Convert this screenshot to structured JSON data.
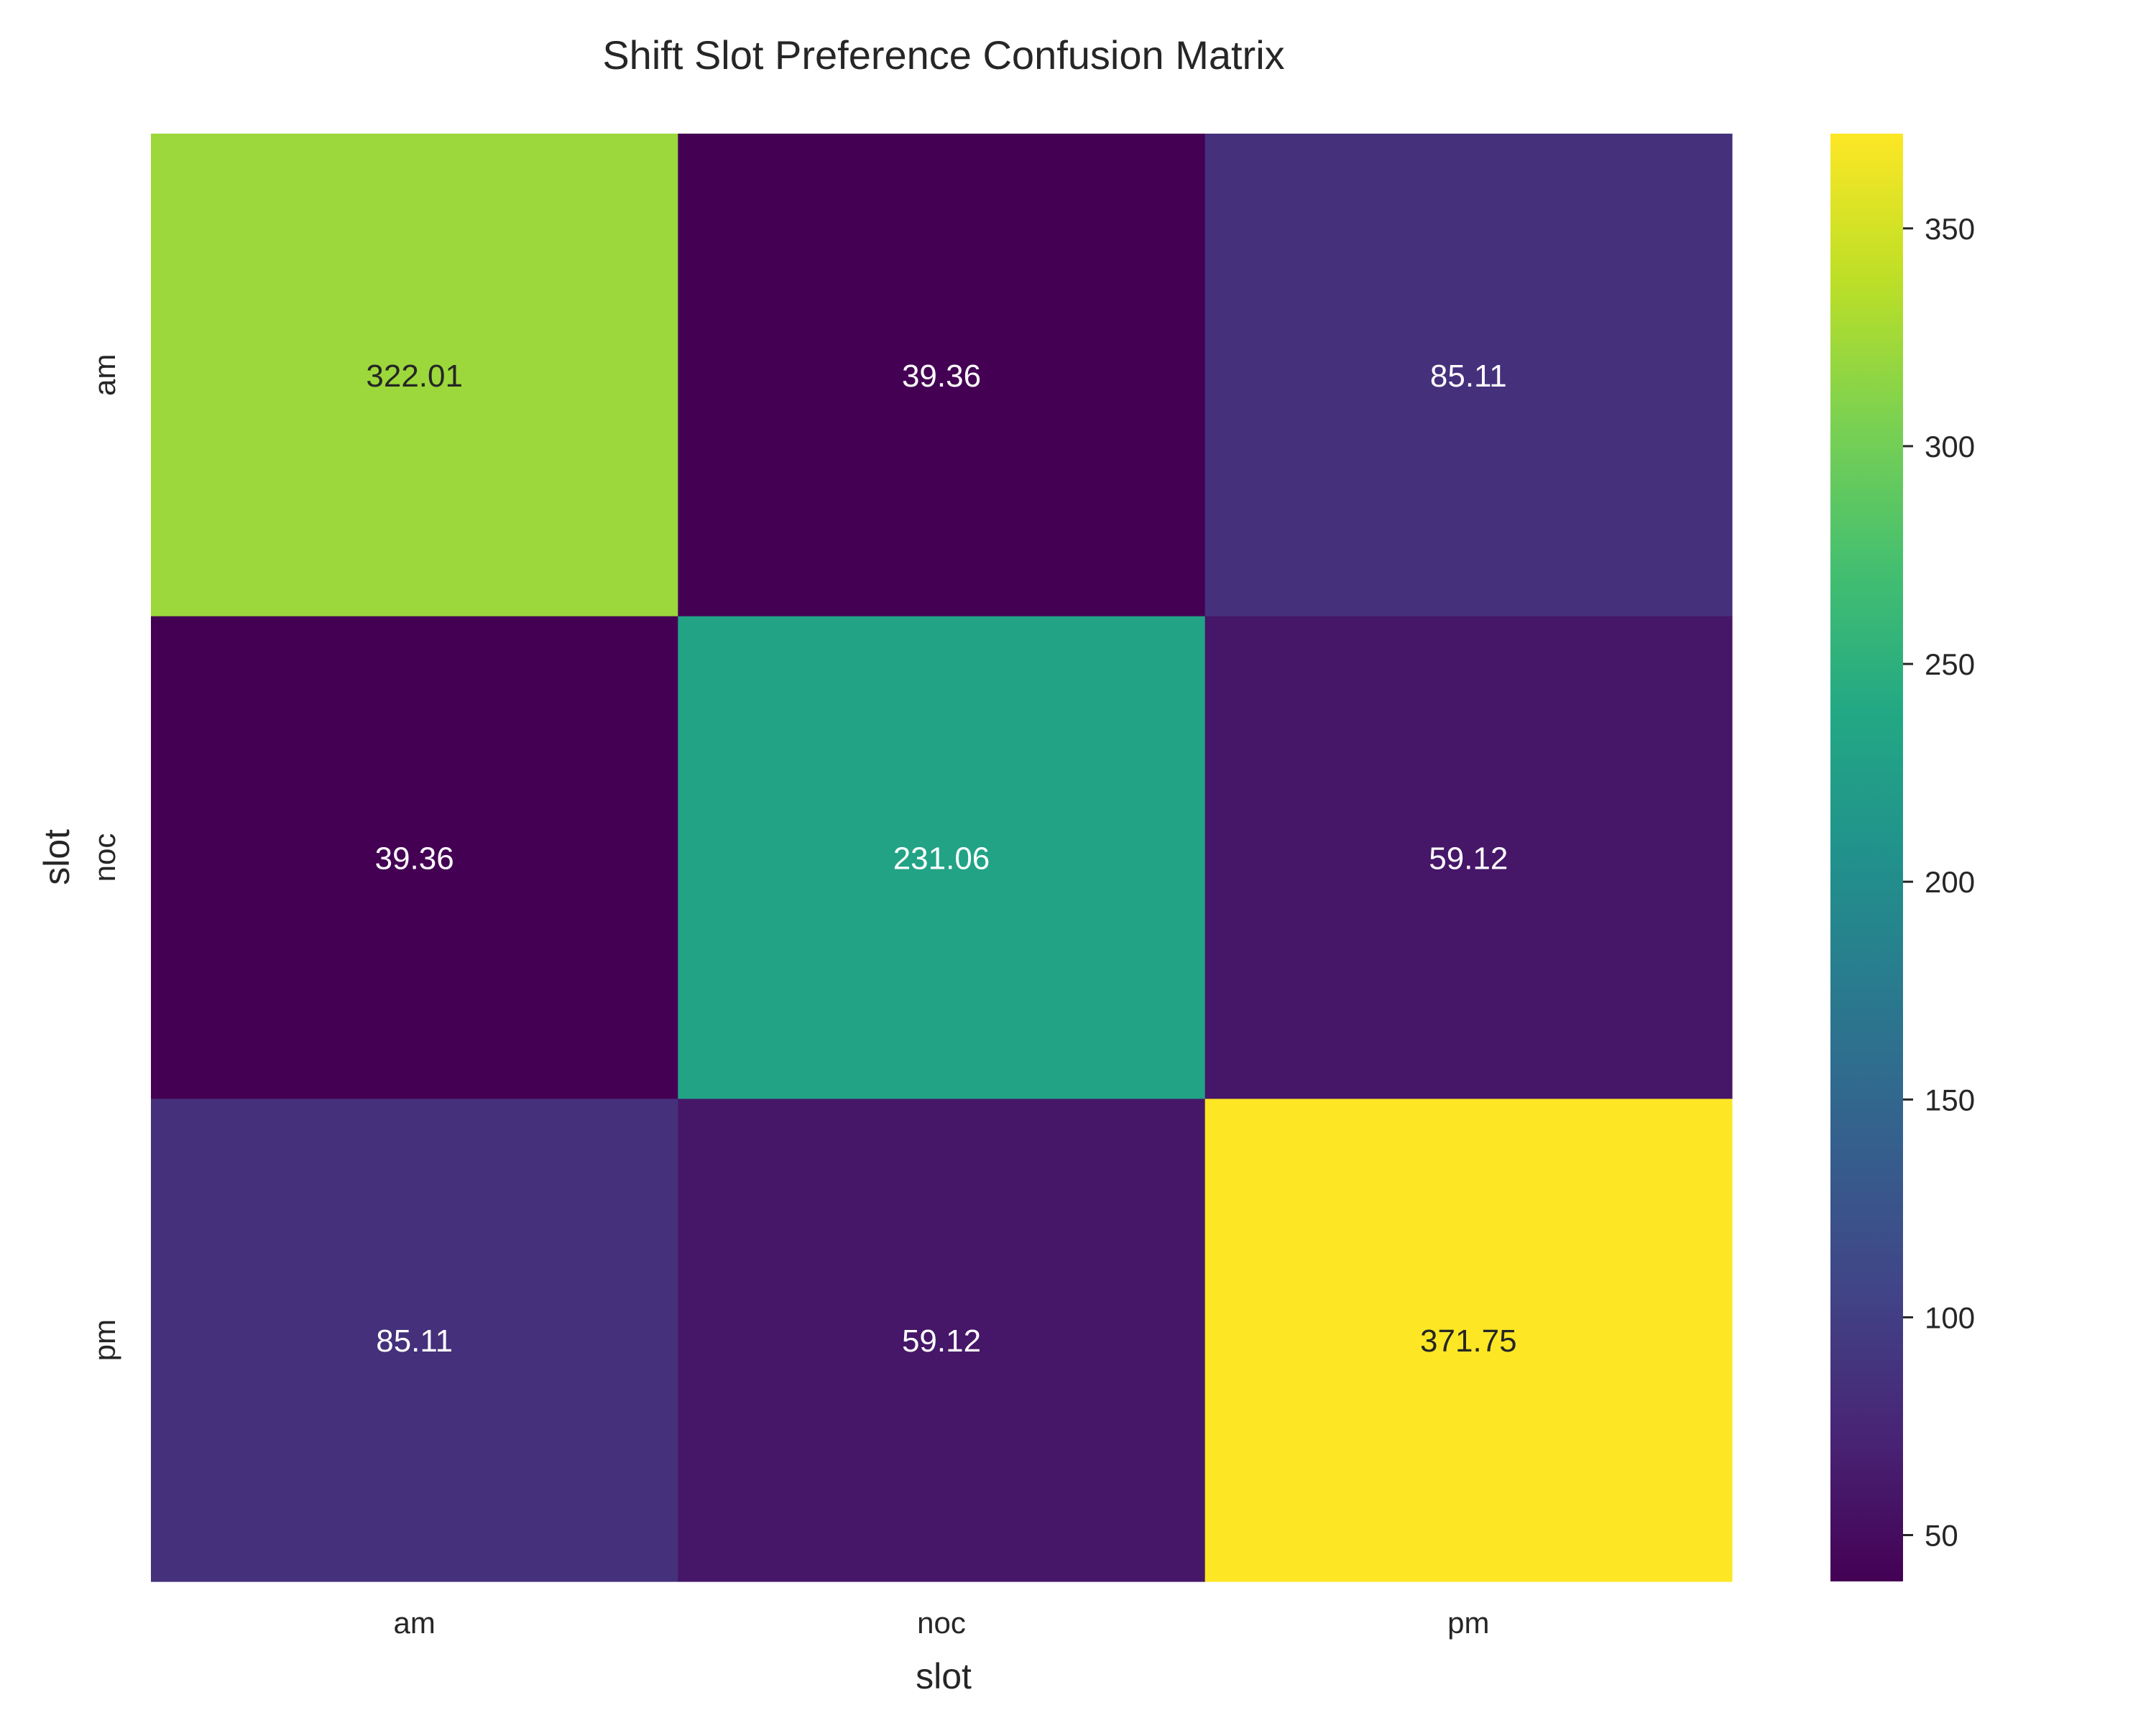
{
  "chart_data": {
    "type": "heatmap",
    "title": "Shift Slot Preference Confusion Matrix",
    "xlabel": "slot",
    "ylabel": "slot",
    "x_categories": [
      "am",
      "noc",
      "pm"
    ],
    "y_categories": [
      "am",
      "noc",
      "pm"
    ],
    "values": [
      [
        322.01,
        39.36,
        85.11
      ],
      [
        39.36,
        231.06,
        59.12
      ],
      [
        85.11,
        59.12,
        371.75
      ]
    ],
    "cell_labels": [
      [
        "322.01",
        "39.36",
        "85.11"
      ],
      [
        "39.36",
        "231.06",
        "59.12"
      ],
      [
        "85.11",
        "59.12",
        "371.75"
      ]
    ],
    "colormap": "viridis",
    "color_range": [
      39.36,
      371.75
    ],
    "colorbar_ticks": [
      50,
      100,
      150,
      200,
      250,
      300,
      350
    ],
    "colorbar_tick_labels": [
      "50",
      "100",
      "150",
      "200",
      "250",
      "300",
      "350"
    ],
    "colorbar_position": "right",
    "grid": false
  }
}
